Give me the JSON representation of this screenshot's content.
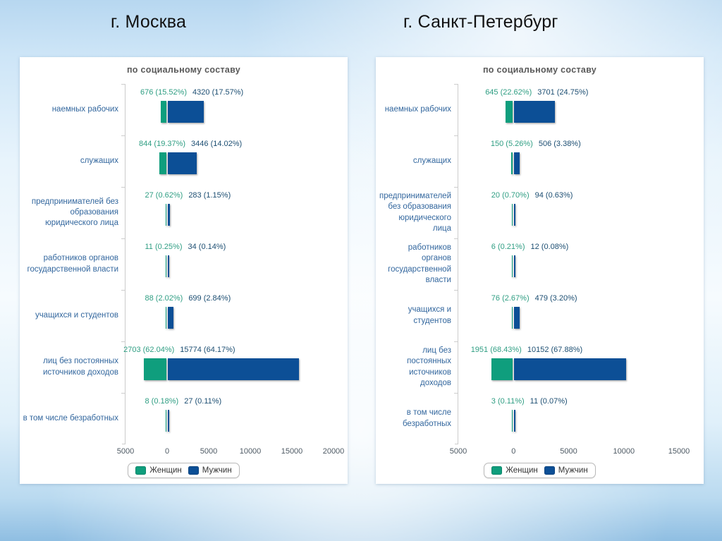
{
  "titles": {
    "moscow": "г. Москва",
    "spb": "г. Санкт-Петербург"
  },
  "colors": {
    "women_bar": "#0f9e7d",
    "men_bar": "#0c4f96",
    "women_text": "#2f9e83",
    "men_text": "#1c4e72",
    "category_text": "#33679e",
    "axis_text": "#4e5a64",
    "chart_title_text": "#595959"
  },
  "chart_data": [
    {
      "type": "bar",
      "orientation": "horizontal-diverging",
      "city": "г. Москва",
      "title": "по социальному составу",
      "grid": false,
      "categories": [
        "наемных рабочих",
        "служащих",
        "предпринимателей без образования юридического лица",
        "работников органов государственной власти",
        "учащихся и студентов",
        "лиц без постоянных источников доходов",
        "в том числе безработных"
      ],
      "series": [
        {
          "name": "Женщин",
          "color": "#0f9e7d",
          "values": [
            676,
            844,
            27,
            11,
            88,
            2703,
            8
          ],
          "labels": [
            "676 (15.52%)",
            "844 (19.37%)",
            "27 (0.62%)",
            "11 (0.25%)",
            "88 (2.02%)",
            "2703 (62.04%)",
            "8 (0.18%)"
          ]
        },
        {
          "name": "Мужчин",
          "color": "#0c4f96",
          "values": [
            4320,
            3446,
            283,
            34,
            699,
            15774,
            27
          ],
          "labels": [
            "4320 (17.57%)",
            "3446 (14.02%)",
            "283 (1.15%)",
            "34 (0.14%)",
            "699 (2.84%)",
            "15774 (64.17%)",
            "27 (0.11%)"
          ]
        }
      ],
      "axis": {
        "min": -5000,
        "max": 20000,
        "ticks": [
          -5000,
          0,
          5000,
          10000,
          15000,
          20000
        ],
        "tick_labels": [
          "5000",
          "0",
          "5000",
          "10000",
          "15000",
          "20000"
        ]
      },
      "legend": {
        "position": "bottom",
        "items": [
          "Женщин",
          "Мужчин"
        ]
      }
    },
    {
      "type": "bar",
      "orientation": "horizontal-diverging",
      "city": "г. Санкт-Петербург",
      "title": "по социальному составу",
      "grid": false,
      "categories": [
        "наемных рабочих",
        "служащих",
        "предпринимателей без образования юридического лица",
        "работников органов государственной власти",
        "учащихся и студентов",
        "лиц без постоянных источников доходов",
        "в том числе безработных"
      ],
      "series": [
        {
          "name": "Женщин",
          "color": "#0f9e7d",
          "values": [
            645,
            150,
            20,
            6,
            76,
            1951,
            3
          ],
          "labels": [
            "645 (22.62%)",
            "150 (5.26%)",
            "20 (0.70%)",
            "6 (0.21%)",
            "76 (2.67%)",
            "1951 (68.43%)",
            "3 (0.11%)"
          ]
        },
        {
          "name": "Мужчин",
          "color": "#0c4f96",
          "values": [
            3701,
            506,
            94,
            12,
            479,
            10152,
            11
          ],
          "labels": [
            "3701 (24.75%)",
            "506 (3.38%)",
            "94 (0.63%)",
            "12 (0.08%)",
            "479 (3.20%)",
            "10152 (67.88%)",
            "11 (0.07%)"
          ]
        }
      ],
      "axis": {
        "min": -5000,
        "max": 15000,
        "ticks": [
          -5000,
          0,
          5000,
          10000,
          15000
        ],
        "tick_labels": [
          "5000",
          "0",
          "5000",
          "10000",
          "15000"
        ]
      },
      "legend": {
        "position": "bottom",
        "items": [
          "Женщин",
          "Мужчин"
        ]
      }
    }
  ]
}
